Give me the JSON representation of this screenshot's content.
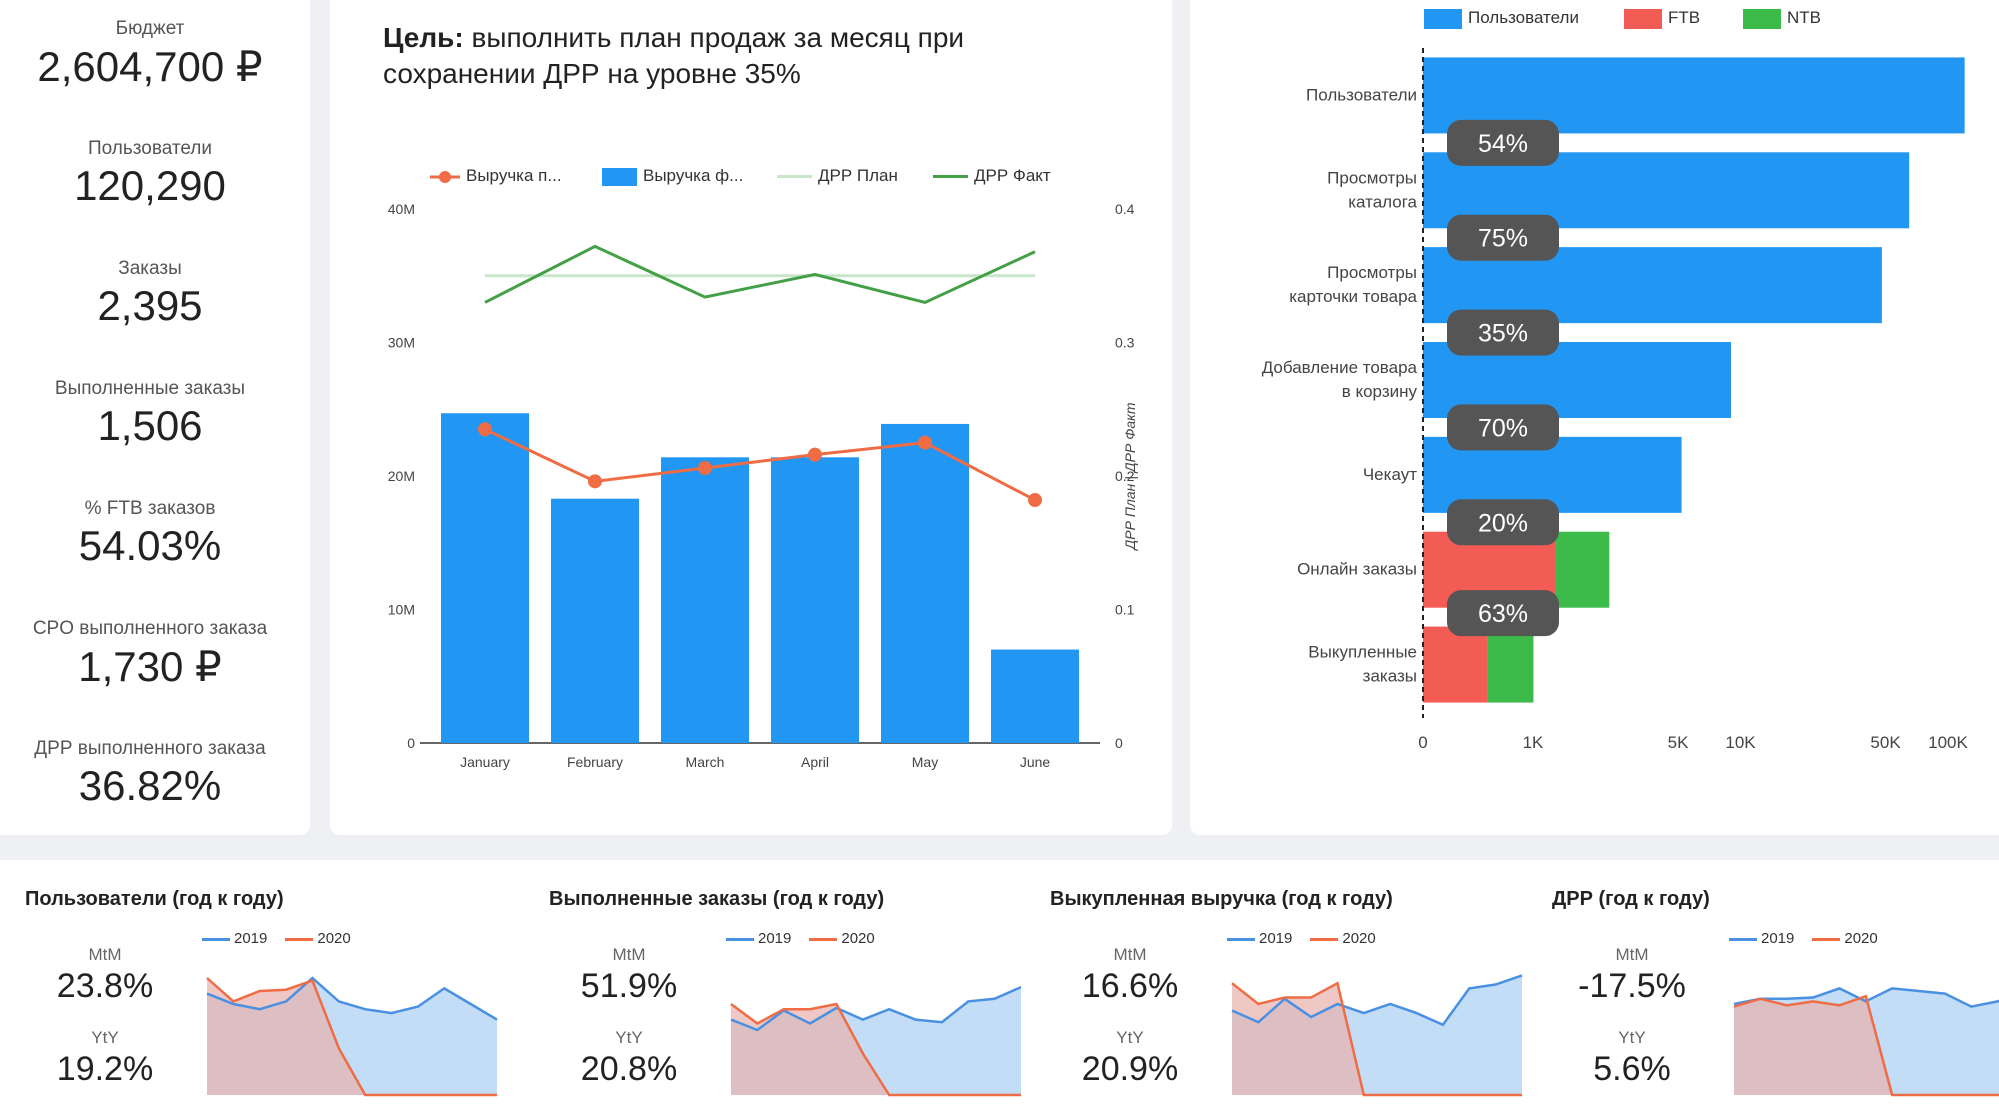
{
  "colors": {
    "blue": "#2196f3",
    "red": "#f25c54",
    "green": "#3dbb4a",
    "orange": "#ef6c45",
    "lightgreen": "#c8e6c9",
    "darkgreen": "#43a047",
    "miniBlue": "#4a90e2",
    "miniFillBlue": "#bcd9f5",
    "miniFillRed": "#e8b1ad"
  },
  "kpis": [
    {
      "label": "Бюджет",
      "value": "2,604,700 ₽"
    },
    {
      "label": "Пользователи",
      "value": "120,290"
    },
    {
      "label": "Заказы",
      "value": "2,395"
    },
    {
      "label": "Выполненные заказы",
      "value": "1,506"
    },
    {
      "label": "% FTB заказов",
      "value": "54.03%"
    },
    {
      "label": "CPO выполненного заказа",
      "value": "1,730 ₽"
    },
    {
      "label": "ДРР выполненного заказа",
      "value": "36.82%"
    }
  ],
  "combo": {
    "title_bold": "Цель:",
    "title_rest": " выполнить план продаж за месяц при сохранении ДРР на уровне 35%",
    "legend": [
      "Выручка п...",
      "Выручка ф...",
      "ДРР План",
      "ДРР Факт"
    ],
    "y_left_ticks": [
      "0",
      "10M",
      "20M",
      "30M",
      "40M"
    ],
    "y_right_ticks": [
      "0",
      "0.1",
      "0.2",
      "0.3",
      "0.4"
    ],
    "y_right_label": "ДРР План | ДРР Факт"
  },
  "funnel": {
    "legend": [
      "Пользователи",
      "FTB",
      "NTB"
    ],
    "x_ticks": [
      "0",
      "1K",
      "5K",
      "10K",
      "50K",
      "100K"
    ]
  },
  "mini": [
    {
      "title": "Пользователи (год к году)",
      "mtm_label": "MtM",
      "mtm": "23.8%",
      "yty_label": "YtY",
      "yty": "19.2%",
      "legend": [
        "2019",
        "2020"
      ]
    },
    {
      "title": "Выполненные заказы (год к году)",
      "mtm_label": "MtM",
      "mtm": "51.9%",
      "yty_label": "YtY",
      "yty": "20.8%",
      "legend": [
        "2019",
        "2020"
      ]
    },
    {
      "title": "Выкупленная выручка (год к году)",
      "mtm_label": "MtM",
      "mtm": "16.6%",
      "yty_label": "YtY",
      "yty": "20.9%",
      "legend": [
        "2019",
        "2020"
      ]
    },
    {
      "title": "ДРР (год к году)",
      "mtm_label": "MtM",
      "mtm": "-17.5%",
      "yty_label": "YtY",
      "yty": "5.6%",
      "legend": [
        "2019",
        "2020"
      ]
    }
  ],
  "chart_data": [
    {
      "type": "bar",
      "categories": [
        "January",
        "February",
        "March",
        "April",
        "May",
        "June"
      ],
      "series": [
        {
          "name": "Выручка ф...",
          "kind": "bar",
          "axis": "left",
          "values": [
            24700000,
            18300000,
            21400000,
            21400000,
            23900000,
            7000000
          ]
        },
        {
          "name": "Выручка п...",
          "kind": "line-marker",
          "axis": "left",
          "values": [
            23500000,
            19600000,
            20600000,
            21600000,
            22500000,
            18200000
          ]
        },
        {
          "name": "ДРР План",
          "kind": "line",
          "axis": "right",
          "values": [
            0.35,
            0.35,
            0.35,
            0.35,
            0.35,
            0.35
          ]
        },
        {
          "name": "ДРР Факт",
          "kind": "line",
          "axis": "right",
          "values": [
            0.33,
            0.372,
            0.334,
            0.351,
            0.33,
            0.368
          ]
        }
      ],
      "ylim_left": [
        0,
        40000000
      ],
      "ylim_right": [
        0,
        0.4
      ]
    },
    {
      "type": "bar",
      "orientation": "horizontal",
      "x_scale": "log",
      "categories": [
        "Пользователи",
        "Просмотры\nкаталога",
        "Просмотры\nкарточки товара",
        "Добавление товара\nв корзину",
        "Чекаут",
        "Онлайн заказы",
        "Выкупленные\nзаказы"
      ],
      "series": [
        {
          "name": "Пользователи",
          "values": [
            120290,
            65000,
            48000,
            9000,
            5200,
            0,
            0
          ]
        },
        {
          "name": "FTB",
          "values": [
            0,
            0,
            0,
            0,
            0,
            1290,
            590
          ]
        },
        {
          "name": "NTB",
          "values": [
            0,
            0,
            0,
            0,
            0,
            1100,
            920
          ]
        }
      ],
      "conversion_labels": [
        "54%",
        "75%",
        "35%",
        "70%",
        "20%",
        "63%"
      ]
    },
    {
      "type": "area",
      "title": "Пользователи (год к году)",
      "series": [
        {
          "name": "2019",
          "values": [
            0.78,
            0.7,
            0.66,
            0.72,
            0.9,
            0.72,
            0.66,
            0.63,
            0.68,
            0.82,
            0.7,
            0.58
          ]
        },
        {
          "name": "2020",
          "values": [
            0.9,
            0.72,
            0.8,
            0.81,
            0.88,
            0.36,
            0.0,
            0.0,
            0.0,
            0.0,
            0.0,
            0.0
          ]
        }
      ]
    },
    {
      "type": "area",
      "title": "Выполненные заказы (год к году)",
      "series": [
        {
          "name": "2019",
          "values": [
            0.58,
            0.5,
            0.65,
            0.55,
            0.67,
            0.58,
            0.66,
            0.58,
            0.56,
            0.72,
            0.74,
            0.83
          ]
        },
        {
          "name": "2020",
          "values": [
            0.7,
            0.55,
            0.66,
            0.66,
            0.7,
            0.32,
            0.0,
            0.0,
            0.0,
            0.0,
            0.0,
            0.0
          ]
        }
      ]
    },
    {
      "type": "area",
      "title": "Выкупленная выручка (год к году)",
      "series": [
        {
          "name": "2019",
          "values": [
            0.65,
            0.56,
            0.74,
            0.6,
            0.7,
            0.63,
            0.7,
            0.63,
            0.54,
            0.82,
            0.85,
            0.92
          ]
        },
        {
          "name": "2020",
          "values": [
            0.86,
            0.7,
            0.75,
            0.75,
            0.86,
            0.0,
            0.0,
            0.0,
            0.0,
            0.0,
            0.0,
            0.0
          ]
        }
      ]
    },
    {
      "type": "area",
      "title": "ДРР (год к году)",
      "series": [
        {
          "name": "2019",
          "values": [
            0.7,
            0.74,
            0.74,
            0.75,
            0.82,
            0.72,
            0.82,
            0.8,
            0.78,
            0.68,
            0.72,
            0.77
          ]
        },
        {
          "name": "2020",
          "values": [
            0.68,
            0.74,
            0.69,
            0.72,
            0.69,
            0.76,
            0.0,
            0.0,
            0.0,
            0.0,
            0.0,
            0.0
          ]
        }
      ]
    }
  ]
}
